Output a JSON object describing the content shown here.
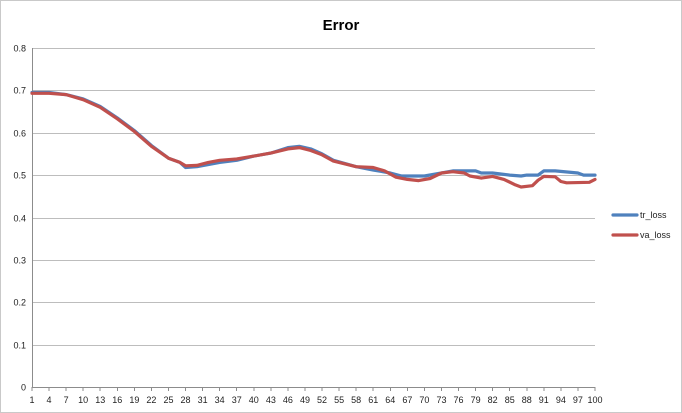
{
  "chart_data": {
    "type": "line",
    "title": "Error",
    "xlabel": "",
    "ylabel": "",
    "ylim": [
      0,
      0.8
    ],
    "yticks": [
      "0",
      "0.1",
      "0.2",
      "0.3",
      "0.4",
      "0.5",
      "0.6",
      "0.7",
      "0.8"
    ],
    "xticks": [
      1,
      4,
      7,
      10,
      13,
      16,
      19,
      22,
      25,
      28,
      31,
      34,
      37,
      40,
      43,
      46,
      49,
      52,
      55,
      58,
      61,
      64,
      67,
      70,
      73,
      76,
      79,
      82,
      85,
      88,
      91,
      94,
      97,
      100
    ],
    "grid": true,
    "legend_position": "right",
    "x_range": [
      1,
      100
    ],
    "series": [
      {
        "name": "tr_loss",
        "color": "#4f81bd",
        "points": [
          [
            1,
            0.695
          ],
          [
            4,
            0.695
          ],
          [
            7,
            0.69
          ],
          [
            10,
            0.68
          ],
          [
            13,
            0.662
          ],
          [
            16,
            0.635
          ],
          [
            19,
            0.605
          ],
          [
            22,
            0.57
          ],
          [
            25,
            0.54
          ],
          [
            27,
            0.53
          ],
          [
            28,
            0.518
          ],
          [
            30,
            0.52
          ],
          [
            32,
            0.525
          ],
          [
            34,
            0.53
          ],
          [
            37,
            0.535
          ],
          [
            40,
            0.545
          ],
          [
            43,
            0.552
          ],
          [
            46,
            0.565
          ],
          [
            48,
            0.568
          ],
          [
            50,
            0.562
          ],
          [
            52,
            0.55
          ],
          [
            54,
            0.535
          ],
          [
            58,
            0.52
          ],
          [
            61,
            0.512
          ],
          [
            64,
            0.505
          ],
          [
            66,
            0.498
          ],
          [
            70,
            0.498
          ],
          [
            73,
            0.505
          ],
          [
            75,
            0.51
          ],
          [
            79,
            0.51
          ],
          [
            80,
            0.505
          ],
          [
            82,
            0.505
          ],
          [
            85,
            0.5
          ],
          [
            87,
            0.498
          ],
          [
            88,
            0.5
          ],
          [
            90,
            0.5
          ],
          [
            91,
            0.51
          ],
          [
            93,
            0.51
          ],
          [
            97,
            0.505
          ],
          [
            98,
            0.5
          ],
          [
            100,
            0.5
          ]
        ]
      },
      {
        "name": "va_loss",
        "color": "#c0504d",
        "points": [
          [
            1,
            0.693
          ],
          [
            4,
            0.693
          ],
          [
            7,
            0.69
          ],
          [
            10,
            0.678
          ],
          [
            13,
            0.66
          ],
          [
            16,
            0.633
          ],
          [
            19,
            0.603
          ],
          [
            22,
            0.568
          ],
          [
            25,
            0.54
          ],
          [
            27,
            0.53
          ],
          [
            28,
            0.522
          ],
          [
            30,
            0.523
          ],
          [
            32,
            0.53
          ],
          [
            34,
            0.535
          ],
          [
            37,
            0.538
          ],
          [
            40,
            0.545
          ],
          [
            43,
            0.552
          ],
          [
            46,
            0.562
          ],
          [
            48,
            0.565
          ],
          [
            50,
            0.558
          ],
          [
            52,
            0.548
          ],
          [
            54,
            0.533
          ],
          [
            58,
            0.52
          ],
          [
            61,
            0.518
          ],
          [
            63,
            0.51
          ],
          [
            65,
            0.495
          ],
          [
            67,
            0.49
          ],
          [
            69,
            0.487
          ],
          [
            71,
            0.492
          ],
          [
            73,
            0.505
          ],
          [
            75,
            0.508
          ],
          [
            77,
            0.505
          ],
          [
            78,
            0.498
          ],
          [
            80,
            0.493
          ],
          [
            82,
            0.497
          ],
          [
            84,
            0.49
          ],
          [
            86,
            0.477
          ],
          [
            87,
            0.472
          ],
          [
            89,
            0.475
          ],
          [
            90,
            0.488
          ],
          [
            91,
            0.497
          ],
          [
            93,
            0.496
          ],
          [
            94,
            0.485
          ],
          [
            95,
            0.482
          ],
          [
            99,
            0.483
          ],
          [
            100,
            0.49
          ]
        ]
      }
    ]
  }
}
